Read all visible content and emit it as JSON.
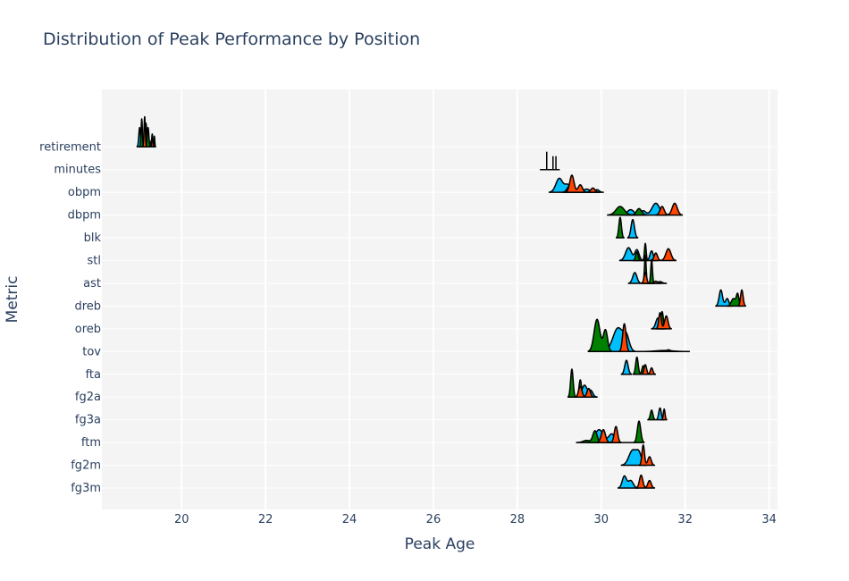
{
  "chart_data": {
    "type": "ridgeline",
    "title": "Distribution of Peak Performance by Position",
    "xlabel": "Peak Age",
    "ylabel": "Metric",
    "xlim": [
      18.1,
      34.2
    ],
    "x_ticks": [
      20,
      22,
      24,
      26,
      28,
      30,
      32,
      34
    ],
    "grid": true,
    "legend": "none",
    "colors": [
      "#00bfff",
      "#008000",
      "#ff4500"
    ],
    "categories": [
      "fg3m",
      "fg2m",
      "ftm",
      "fg3a",
      "fg2a",
      "fta",
      "tov",
      "oreb",
      "dreb",
      "ast",
      "stl",
      "blk",
      "dbpm",
      "obpm",
      "minutes",
      "retirement"
    ],
    "series": [
      {
        "color": "#00bfff",
        "peaks": [
          [
            [
              30.55,
              0.55,
              0.05
            ],
            [
              30.7,
              0.35,
              0.06
            ]
          ],
          [
            [
              30.75,
              0.7,
              0.09
            ],
            [
              30.9,
              0.5,
              0.06
            ]
          ],
          [
            [
              29.95,
              0.6,
              0.1
            ],
            [
              30.25,
              0.4,
              0.07
            ]
          ],
          [
            [
              31.4,
              0.55,
              0.03
            ]
          ],
          [
            [
              29.6,
              0.55,
              0.06
            ],
            [
              29.75,
              0.3,
              0.05
            ]
          ],
          [
            [
              30.6,
              0.65,
              0.04
            ]
          ],
          [
            [
              30.4,
              1.1,
              0.12
            ],
            [
              30.6,
              0.6,
              0.07
            ],
            [
              31.5,
              0.05,
              0.2
            ]
          ],
          [
            [
              31.35,
              0.5,
              0.05
            ]
          ],
          [
            [
              32.85,
              0.75,
              0.04
            ],
            [
              33.0,
              0.35,
              0.04
            ]
          ],
          [
            [
              30.8,
              0.5,
              0.05
            ],
            [
              31.4,
              0.08,
              0.05
            ]
          ],
          [
            [
              30.65,
              0.6,
              0.07
            ],
            [
              30.85,
              0.5,
              0.05
            ],
            [
              31.2,
              0.45,
              0.04
            ]
          ],
          [
            [
              30.75,
              0.85,
              0.04
            ]
          ],
          [
            [
              30.7,
              0.25,
              0.08
            ],
            [
              31.3,
              0.55,
              0.09
            ],
            [
              31.0,
              0.2,
              0.06
            ]
          ],
          [
            [
              29.0,
              0.65,
              0.08
            ],
            [
              29.2,
              0.35,
              0.07
            ],
            [
              29.65,
              0.15,
              0.08
            ],
            [
              29.9,
              0.12,
              0.05
            ]
          ],
          [
            [
              28.7,
              0.0,
              0.05
            ]
          ],
          [
            [
              19.0,
              0.9,
              0.02
            ],
            [
              19.15,
              1.1,
              0.02
            ],
            [
              19.28,
              0.3,
              0.015
            ]
          ]
        ]
      },
      {
        "color": "#008000",
        "peaks": [],
        "peaks_by_metric": [
          [],
          [],
          [
            [
              29.85,
              0.55,
              0.05
            ],
            [
              29.65,
              0.1,
              0.08
            ],
            [
              30.9,
              1.0,
              0.04
            ]
          ],
          [
            [
              31.2,
              0.45,
              0.03
            ]
          ],
          [
            [
              29.3,
              1.3,
              0.03
            ],
            [
              29.5,
              0.8,
              0.03
            ]
          ],
          [
            [
              30.85,
              0.8,
              0.03
            ],
            [
              31.0,
              0.4,
              0.03
            ]
          ],
          [
            [
              29.9,
              1.5,
              0.07
            ],
            [
              30.1,
              1.0,
              0.05
            ]
          ],
          [
            [
              31.45,
              0.8,
              0.03
            ]
          ],
          [
            [
              33.15,
              0.35,
              0.05
            ],
            [
              33.25,
              0.55,
              0.03
            ]
          ],
          [
            [
              31.05,
              1.3,
              0.02
            ],
            [
              31.2,
              1.1,
              0.02
            ]
          ],
          [
            [
              31.05,
              0.8,
              0.02
            ],
            [
              30.85,
              0.4,
              0.03
            ]
          ],
          [
            [
              30.45,
              0.95,
              0.03
            ]
          ],
          [
            [
              30.45,
              0.4,
              0.1
            ],
            [
              30.9,
              0.3,
              0.06
            ]
          ],
          [
            [
              29.25,
              0.3,
              0.06
            ],
            [
              29.45,
              0.15,
              0.05
            ]
          ],
          [],
          [
            [
              19.05,
              1.3,
              0.015
            ],
            [
              19.2,
              0.9,
              0.02
            ],
            [
              19.35,
              0.5,
              0.01
            ]
          ]
        ]
      },
      {
        "color": "#ff4500",
        "peaks": [],
        "peaks_by_metric": [
          [
            [
              30.95,
              0.6,
              0.04
            ],
            [
              31.15,
              0.35,
              0.04
            ]
          ],
          [
            [
              31.0,
              0.95,
              0.03
            ],
            [
              31.15,
              0.4,
              0.04
            ]
          ],
          [
            [
              30.35,
              0.75,
              0.04
            ],
            [
              30.05,
              0.6,
              0.05
            ]
          ],
          [
            [
              31.5,
              0.5,
              0.02
            ]
          ],
          [
            [
              29.5,
              0.5,
              0.04
            ],
            [
              29.7,
              0.4,
              0.04
            ]
          ],
          [
            [
              31.05,
              0.45,
              0.03
            ],
            [
              31.2,
              0.3,
              0.03
            ]
          ],
          [
            [
              30.55,
              1.3,
              0.04
            ],
            [
              31.6,
              0.08,
              0.05
            ]
          ],
          [
            [
              31.55,
              0.6,
              0.04
            ],
            [
              31.4,
              0.75,
              0.03
            ]
          ],
          [
            [
              33.35,
              0.75,
              0.03
            ]
          ],
          [
            [
              31.05,
              0.5,
              0.03
            ],
            [
              31.3,
              0.1,
              0.04
            ]
          ],
          [
            [
              31.6,
              0.55,
              0.06
            ],
            [
              31.3,
              0.35,
              0.04
            ]
          ],
          [],
          [
            [
              31.75,
              0.55,
              0.06
            ],
            [
              31.45,
              0.4,
              0.05
            ]
          ],
          [
            [
              29.3,
              0.8,
              0.05
            ],
            [
              29.5,
              0.35,
              0.05
            ],
            [
              29.8,
              0.2,
              0.05
            ]
          ],
          [
            [
              28.85,
              0.0,
              0.05
            ]
          ],
          [
            [
              19.12,
              1.4,
              0.015
            ],
            [
              19.3,
              0.6,
              0.012
            ]
          ]
        ]
      }
    ]
  }
}
